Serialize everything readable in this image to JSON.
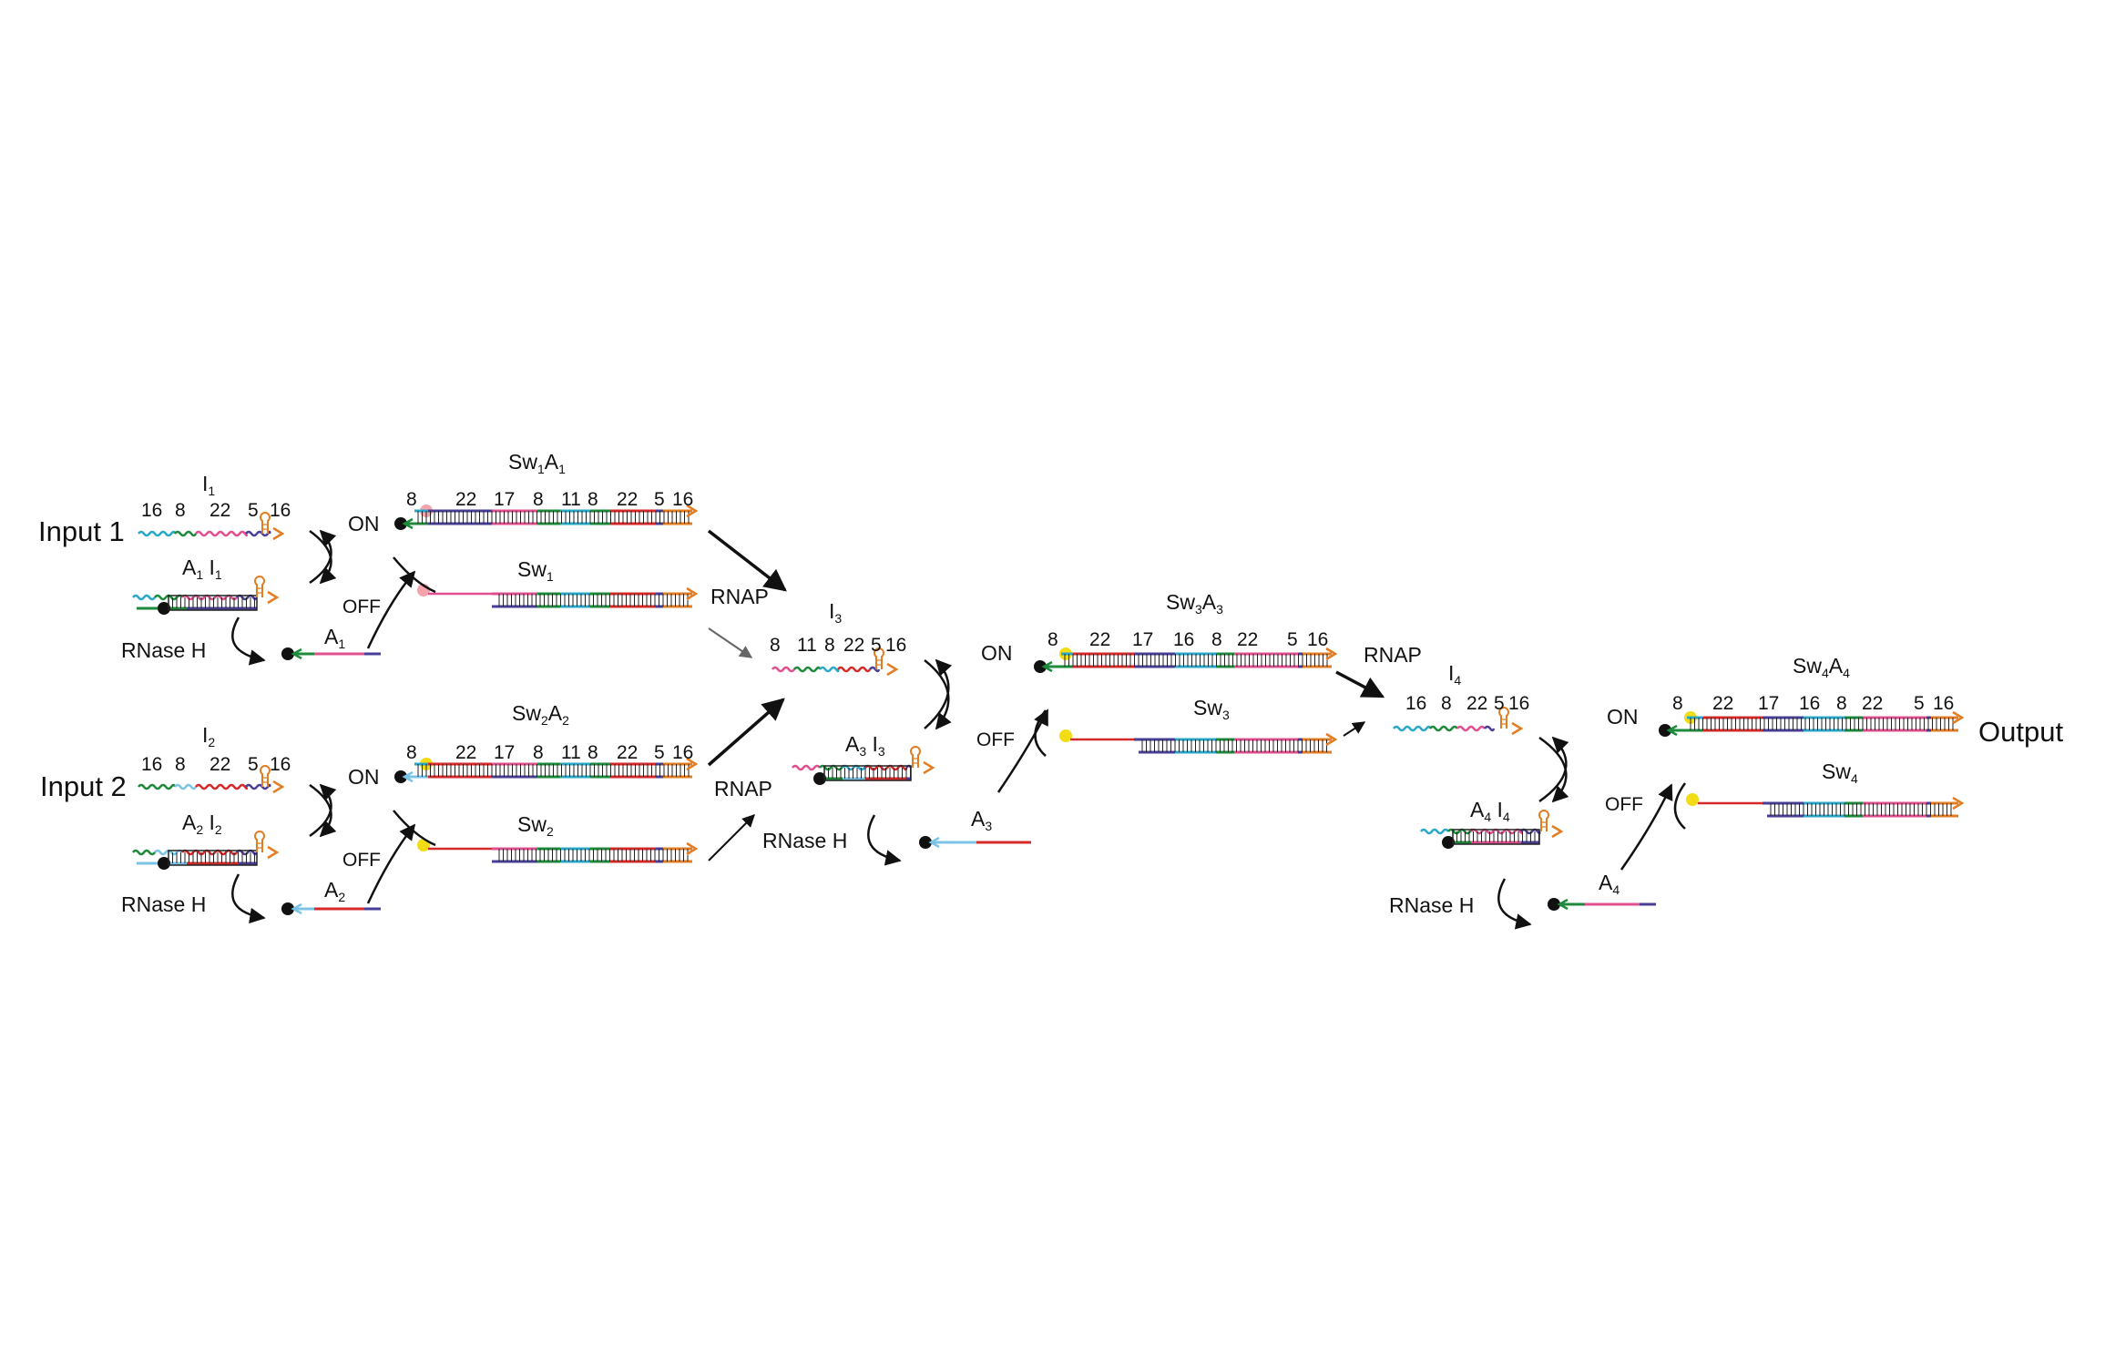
{
  "colors": {
    "cyan": "#29a8c9",
    "green": "#1e8a3c",
    "pink": "#e0508f",
    "purple": "#4a3f96",
    "orange": "#e27d22",
    "red": "#d62a2a",
    "lightblue": "#7cc4e6",
    "black": "#111111",
    "yellow": "#f2dc16",
    "lightpink": "#f2a4aa"
  },
  "labels": {
    "input1": "Input 1",
    "input2": "Input 2",
    "output": "Output",
    "on": "ON",
    "off": "OFF",
    "rnap": "RNAP",
    "rnaseh": "RNase H"
  },
  "names": {
    "I": "I",
    "A": "A",
    "Sw": "Sw",
    "idx1": "1",
    "idx2": "2",
    "idx3": "3",
    "idx4": "4"
  },
  "domain_lengths": {
    "i1": [
      "16",
      "8",
      "22",
      "5",
      "16"
    ],
    "i2": [
      "16",
      "8",
      "22",
      "5",
      "16"
    ],
    "i3": [
      "8",
      "11",
      "8",
      "22",
      "5",
      "16"
    ],
    "i4": [
      "16",
      "8",
      "22",
      "5",
      "16"
    ],
    "sw1": [
      "8",
      "22",
      "17",
      "8",
      "11",
      "8",
      "22",
      "5",
      "16"
    ],
    "sw2": [
      "8",
      "22",
      "17",
      "8",
      "11",
      "8",
      "22",
      "5",
      "16"
    ],
    "sw3": [
      "8",
      "22",
      "17",
      "16",
      "8",
      "22",
      "5",
      "16"
    ],
    "sw4": [
      "8",
      "22",
      "17",
      "16",
      "8",
      "22",
      "5",
      "16"
    ]
  }
}
